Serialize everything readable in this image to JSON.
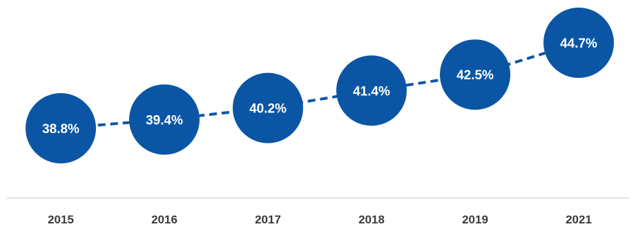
{
  "chart_data": {
    "type": "line",
    "title": "",
    "xlabel": "",
    "ylabel": "",
    "categories": [
      "2015",
      "2016",
      "2017",
      "2018",
      "2019",
      "2021"
    ],
    "series": [
      {
        "values": [
          38.8,
          39.4,
          40.2,
          41.4,
          42.5,
          44.7
        ]
      }
    ],
    "data_labels": [
      "38.8%",
      "39.4%",
      "40.2%",
      "41.4%",
      "42.5%",
      "44.7%"
    ],
    "value_unit": "%",
    "ylim": [
      36.5,
      46
    ],
    "grid": false,
    "marker": "large-filled-circle",
    "line_style": "dashed",
    "colors": {
      "series": "#0b56a4",
      "label_text": "#ffffff",
      "axis_line": "#d9d9d9",
      "tick_text": "#3a3a3a"
    }
  }
}
